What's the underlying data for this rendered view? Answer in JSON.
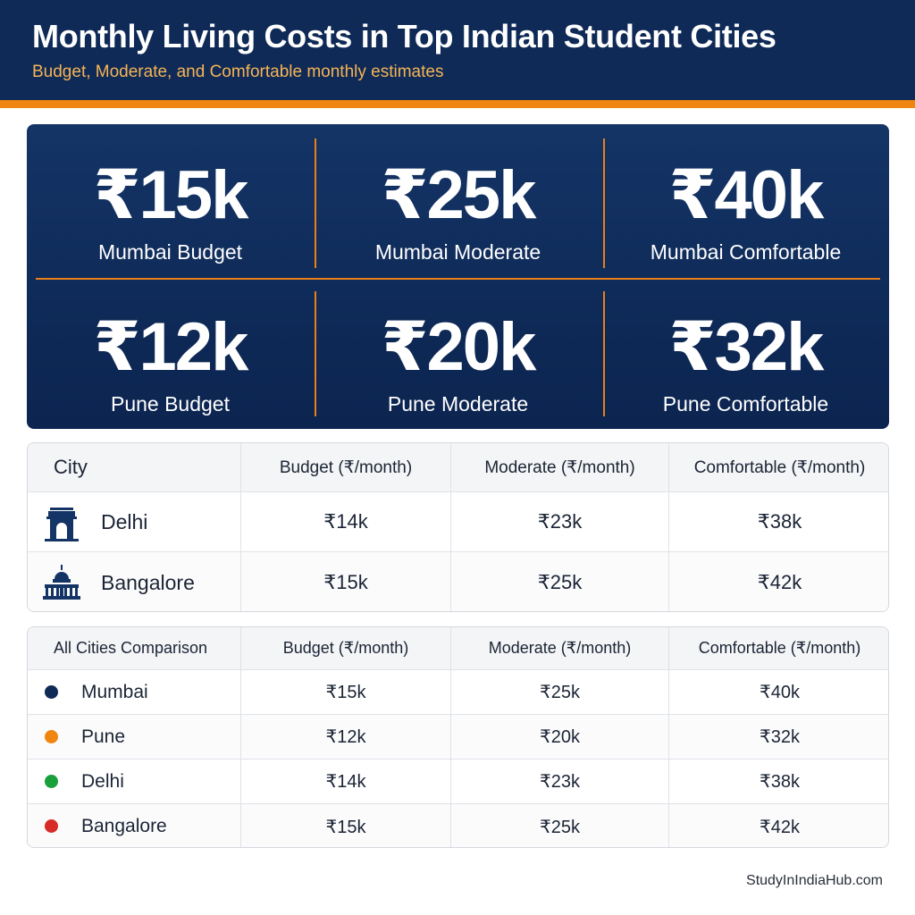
{
  "header": {
    "title": "Monthly Living Costs in Top Indian Student Cities",
    "subtitle": "Budget, Moderate, and Comfortable monthly estimates"
  },
  "colors": {
    "navy": "#0f2a57",
    "accent_orange": "#f0860f",
    "mumbai_dot": "#0f2a57",
    "pune_dot": "#f0860f",
    "delhi_dot": "#18a03b",
    "bangalore_dot": "#d72b27"
  },
  "stats": [
    {
      "value": "₹15k",
      "label": "Mumbai Budget"
    },
    {
      "value": "₹25k",
      "label": "Mumbai Moderate"
    },
    {
      "value": "₹40k",
      "label": "Mumbai Comfortable"
    },
    {
      "value": "₹12k",
      "label": "Pune Budget"
    },
    {
      "value": "₹20k",
      "label": "Pune Moderate"
    },
    {
      "value": "₹32k",
      "label": "Pune Comfortable"
    }
  ],
  "city_table": {
    "headers": [
      "City",
      "Budget (₹/month)",
      "Moderate (₹/month)",
      "Comfortable (₹/month)"
    ],
    "rows": [
      {
        "city": "Delhi",
        "icon": "india-gate-icon",
        "budget": "₹14k",
        "moderate": "₹23k",
        "comfortable": "₹38k"
      },
      {
        "city": "Bangalore",
        "icon": "vidhana-soudha-icon",
        "budget": "₹15k",
        "moderate": "₹25k",
        "comfortable": "₹42k"
      }
    ]
  },
  "comparison_table": {
    "headers": [
      "All Cities Comparison",
      "Budget (₹/month)",
      "Moderate (₹/month)",
      "Comfortable (₹/month)"
    ],
    "rows": [
      {
        "city": "Mumbai",
        "color": "#0f2a57",
        "budget": "₹15k",
        "moderate": "₹25k",
        "comfortable": "₹40k"
      },
      {
        "city": "Pune",
        "color": "#f0860f",
        "budget": "₹12k",
        "moderate": "₹20k",
        "comfortable": "₹32k"
      },
      {
        "city": "Delhi",
        "color": "#18a03b",
        "budget": "₹14k",
        "moderate": "₹23k",
        "comfortable": "₹38k"
      },
      {
        "city": "Bangalore",
        "color": "#d72b27",
        "budget": "₹15k",
        "moderate": "₹25k",
        "comfortable": "₹42k"
      }
    ]
  },
  "chart_data": {
    "type": "table",
    "title": "Monthly Living Costs in Top Indian Student Cities",
    "subtitle": "Budget, Moderate, and Comfortable monthly estimates",
    "columns": [
      "Budget (₹/month)",
      "Moderate (₹/month)",
      "Comfortable (₹/month)"
    ],
    "categories": [
      "Mumbai",
      "Pune",
      "Delhi",
      "Bangalore"
    ],
    "series": [
      {
        "name": "Budget (₹/month)",
        "values": [
          15000,
          12000,
          14000,
          15000
        ]
      },
      {
        "name": "Moderate (₹/month)",
        "values": [
          25000,
          20000,
          23000,
          25000
        ]
      },
      {
        "name": "Comfortable (₹/month)",
        "values": [
          40000,
          32000,
          38000,
          42000
        ]
      }
    ]
  },
  "footer": {
    "source": "StudyInIndiaHub.com"
  }
}
